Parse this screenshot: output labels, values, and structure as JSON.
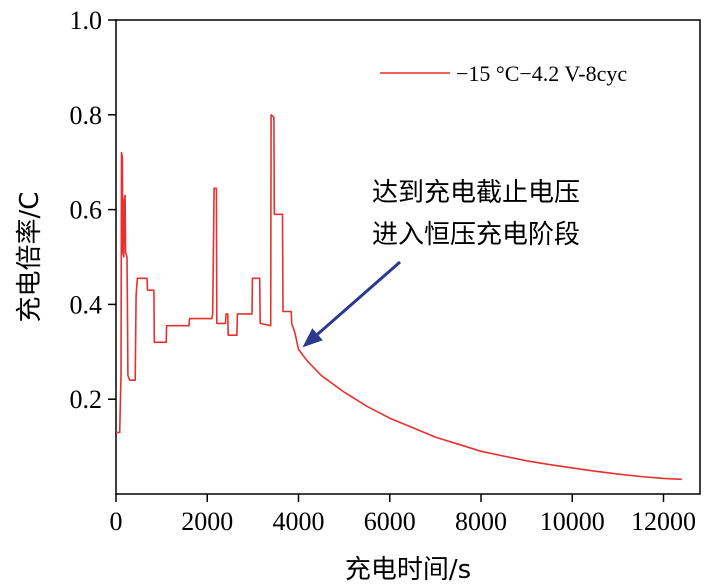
{
  "chart_data": {
    "type": "line",
    "title": "",
    "xlabel": "充电时间/s",
    "ylabel": "充电倍率/C",
    "xlim": [
      0,
      12800
    ],
    "ylim": [
      0.0,
      1.0
    ],
    "x_ticks": [
      0,
      2000,
      4000,
      6000,
      8000,
      10000,
      12000
    ],
    "x_tick_labels": [
      "0",
      "2000",
      "4000",
      "6000",
      "8000",
      "10000",
      "12000"
    ],
    "y_ticks": [
      0.2,
      0.4,
      0.6,
      0.8,
      1.0
    ],
    "y_tick_labels": [
      "0.2",
      "0.4",
      "0.6",
      "0.8",
      "1.0"
    ],
    "legend_position": "top-right",
    "series": [
      {
        "name": "−15 °C−4.2 V-8cyc",
        "color": "#e8302e",
        "points": [
          [
            0,
            0.13
          ],
          [
            80,
            0.13
          ],
          [
            110,
            0.25
          ],
          [
            120,
            0.72
          ],
          [
            140,
            0.71
          ],
          [
            150,
            0.51
          ],
          [
            170,
            0.5
          ],
          [
            180,
            0.62
          ],
          [
            200,
            0.63
          ],
          [
            210,
            0.51
          ],
          [
            240,
            0.5
          ],
          [
            250,
            0.4
          ],
          [
            260,
            0.25
          ],
          [
            300,
            0.24
          ],
          [
            420,
            0.24
          ],
          [
            440,
            0.42
          ],
          [
            470,
            0.455
          ],
          [
            680,
            0.455
          ],
          [
            690,
            0.43
          ],
          [
            830,
            0.43
          ],
          [
            840,
            0.32
          ],
          [
            1100,
            0.32
          ],
          [
            1110,
            0.355
          ],
          [
            1600,
            0.355
          ],
          [
            1610,
            0.37
          ],
          [
            2100,
            0.37
          ],
          [
            2120,
            0.38
          ],
          [
            2150,
            0.645
          ],
          [
            2200,
            0.645
          ],
          [
            2210,
            0.36
          ],
          [
            2400,
            0.36
          ],
          [
            2410,
            0.38
          ],
          [
            2450,
            0.38
          ],
          [
            2460,
            0.335
          ],
          [
            2650,
            0.335
          ],
          [
            2660,
            0.38
          ],
          [
            2980,
            0.38
          ],
          [
            2990,
            0.455
          ],
          [
            3150,
            0.455
          ],
          [
            3160,
            0.36
          ],
          [
            3390,
            0.355
          ],
          [
            3400,
            0.8
          ],
          [
            3460,
            0.795
          ],
          [
            3470,
            0.59
          ],
          [
            3650,
            0.59
          ],
          [
            3660,
            0.385
          ],
          [
            3840,
            0.385
          ],
          [
            3850,
            0.36
          ],
          [
            3920,
            0.34
          ],
          [
            3990,
            0.31
          ],
          [
            4000,
            0.305
          ],
          [
            4200,
            0.28
          ],
          [
            4500,
            0.25
          ],
          [
            5000,
            0.215
          ],
          [
            5500,
            0.185
          ],
          [
            6000,
            0.16
          ],
          [
            6500,
            0.14
          ],
          [
            7000,
            0.12
          ],
          [
            7500,
            0.105
          ],
          [
            8000,
            0.09
          ],
          [
            8500,
            0.08
          ],
          [
            9000,
            0.07
          ],
          [
            9500,
            0.062
          ],
          [
            10000,
            0.055
          ],
          [
            10500,
            0.048
          ],
          [
            11000,
            0.042
          ],
          [
            11500,
            0.037
          ],
          [
            12000,
            0.033
          ],
          [
            12400,
            0.031
          ]
        ]
      }
    ],
    "annotations": [
      {
        "lines": [
          "达到充电截止电压",
          "进入恒压充电阶段"
        ],
        "arrow_target": [
          4000,
          0.305
        ],
        "arrow_color": "#2b3a8c"
      }
    ]
  }
}
